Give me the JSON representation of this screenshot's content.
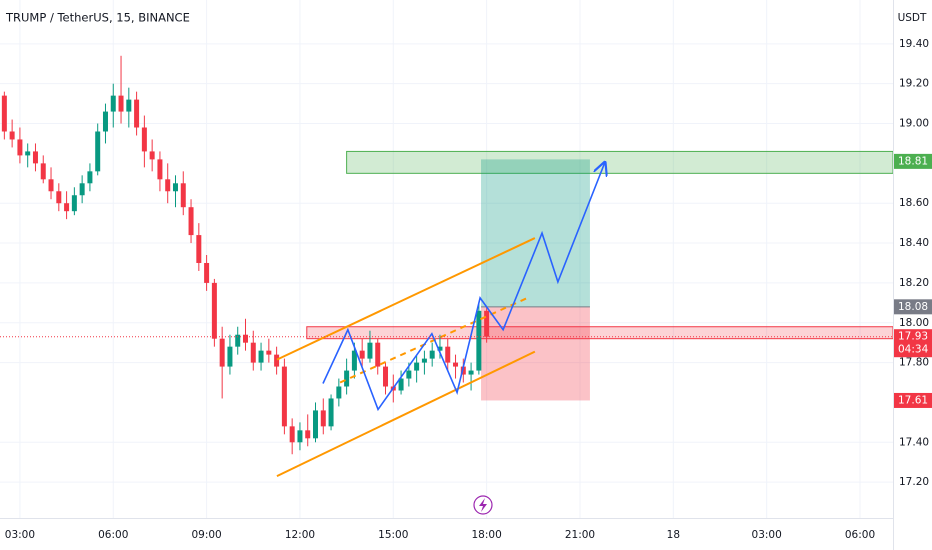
{
  "chart_data": {
    "type": "candlestick",
    "title": "TRUMP / TetherUS, 15, BINANCE",
    "unit": "USDT",
    "up_color": "#089981",
    "down_color": "#f23645",
    "grid": true,
    "xlim": [
      2.36,
      31.06
    ],
    "ylim": [
      17.02,
      19.62
    ],
    "yticks": [
      {
        "value": 17.2,
        "label": "17.20"
      },
      {
        "value": 17.4,
        "label": "17.40"
      },
      {
        "value": 17.8,
        "label": "17.80"
      },
      {
        "value": 18,
        "label": "18.00"
      },
      {
        "value": 18.2,
        "label": "18.20"
      },
      {
        "value": 18.4,
        "label": "18.40"
      },
      {
        "value": 18.6,
        "label": "18.60"
      },
      {
        "value": 19,
        "label": "19.00"
      },
      {
        "value": 19.2,
        "label": "19.20"
      },
      {
        "value": 19.4,
        "label": "19.40"
      }
    ],
    "xticks": [
      {
        "value": 3,
        "label": "03:00"
      },
      {
        "value": 6,
        "label": "06:00"
      },
      {
        "value": 9,
        "label": "09:00"
      },
      {
        "value": 12,
        "label": "12:00"
      },
      {
        "value": 15,
        "label": "15:00"
      },
      {
        "value": 18,
        "label": "18:00"
      },
      {
        "value": 21,
        "label": "21:00"
      },
      {
        "value": 24,
        "label": "18"
      },
      {
        "value": 27,
        "label": "03:00"
      },
      {
        "value": 30,
        "label": "06:00"
      }
    ],
    "candles": {
      "x": [
        2.5,
        2.75,
        3,
        3.25,
        3.5,
        3.75,
        4,
        4.25,
        4.5,
        4.75,
        5,
        5.25,
        5.5,
        5.75,
        6,
        6.25,
        6.5,
        6.75,
        7,
        7.25,
        7.5,
        7.75,
        8,
        8.25,
        8.5,
        8.75,
        9,
        9.25,
        9.5,
        9.75,
        10,
        10.25,
        10.5,
        10.75,
        11,
        11.25,
        11.5,
        11.75,
        12,
        12.25,
        12.5,
        12.75,
        13,
        13.25,
        13.5,
        13.75,
        14,
        14.25,
        14.5,
        14.75,
        15,
        15.25,
        15.5,
        15.75,
        16,
        16.25,
        16.5,
        16.75,
        17,
        17.25,
        17.5,
        17.75,
        18
      ],
      "open": [
        19.14,
        18.96,
        18.92,
        18.84,
        18.86,
        18.8,
        18.72,
        18.66,
        18.6,
        18.56,
        18.64,
        18.7,
        18.76,
        18.96,
        19.06,
        19.14,
        19.06,
        19.12,
        18.98,
        18.86,
        18.82,
        18.72,
        18.66,
        18.7,
        18.58,
        18.44,
        18.3,
        18.2,
        17.92,
        17.78,
        17.88,
        17.94,
        17.9,
        17.8,
        17.86,
        17.84,
        17.78,
        17.48,
        17.4,
        17.46,
        17.42,
        17.56,
        17.48,
        17.62,
        17.68,
        17.76,
        17.86,
        17.82,
        17.9,
        17.78,
        17.68,
        17.66,
        17.72,
        17.76,
        17.8,
        17.82,
        17.86,
        17.88,
        17.8,
        17.78,
        17.74,
        17.76,
        18.06
      ],
      "high": [
        19.16,
        19.02,
        18.98,
        18.9,
        18.9,
        18.84,
        18.78,
        18.7,
        18.66,
        18.68,
        18.74,
        18.8,
        19.0,
        19.1,
        19.2,
        19.34,
        19.18,
        19.16,
        19.04,
        18.92,
        18.86,
        18.8,
        18.74,
        18.76,
        18.62,
        18.5,
        18.34,
        18.22,
        17.98,
        17.94,
        17.98,
        18.02,
        17.96,
        17.9,
        17.92,
        17.88,
        17.82,
        17.52,
        17.5,
        17.54,
        17.6,
        17.62,
        17.64,
        17.72,
        17.82,
        17.9,
        17.92,
        17.96,
        17.92,
        17.8,
        17.74,
        17.76,
        17.8,
        17.84,
        17.86,
        17.9,
        17.94,
        17.92,
        17.84,
        17.82,
        17.8,
        18.1,
        18.08
      ],
      "low": [
        18.92,
        18.88,
        18.8,
        18.78,
        18.76,
        18.7,
        18.62,
        18.56,
        18.52,
        18.54,
        18.6,
        18.66,
        18.74,
        18.9,
        18.98,
        19.0,
        18.98,
        18.94,
        18.78,
        18.76,
        18.66,
        18.6,
        18.58,
        18.54,
        18.4,
        18.26,
        18.16,
        17.88,
        17.62,
        17.74,
        17.84,
        17.86,
        17.76,
        17.76,
        17.8,
        17.74,
        17.44,
        17.34,
        17.36,
        17.38,
        17.4,
        17.44,
        17.46,
        17.58,
        17.64,
        17.72,
        17.78,
        17.8,
        17.74,
        17.64,
        17.6,
        17.64,
        17.68,
        17.7,
        17.74,
        17.78,
        17.82,
        17.76,
        17.72,
        17.7,
        17.66,
        17.74,
        17.9
      ],
      "close": [
        18.96,
        18.92,
        18.84,
        18.86,
        18.8,
        18.72,
        18.66,
        18.6,
        18.56,
        18.64,
        18.7,
        18.76,
        18.96,
        19.06,
        19.14,
        19.06,
        19.12,
        18.98,
        18.86,
        18.82,
        18.72,
        18.66,
        18.7,
        18.58,
        18.44,
        18.3,
        18.2,
        17.92,
        17.78,
        17.88,
        17.94,
        17.9,
        17.8,
        17.86,
        17.84,
        17.78,
        17.48,
        17.4,
        17.46,
        17.42,
        17.56,
        17.48,
        17.62,
        17.68,
        17.76,
        17.86,
        17.82,
        17.9,
        17.78,
        17.68,
        17.66,
        17.72,
        17.76,
        17.8,
        17.82,
        17.86,
        17.88,
        17.8,
        17.78,
        17.74,
        17.76,
        18.06,
        17.93
      ]
    },
    "resistance_zone": {
      "x": 13.5,
      "low": 18.75,
      "high": 18.86,
      "color": "#4caf50"
    },
    "support_zone": {
      "x": 12.22,
      "low": 17.92,
      "high": 17.98,
      "color": "#f23645"
    },
    "position": {
      "x": [
        17.82,
        21.32
      ],
      "entry": 18.08,
      "target": 18.82,
      "stop": 17.61
    },
    "channel": {
      "color": "#ff9800",
      "lines": [
        {
          "x": [
            11.26,
            19.55
          ],
          "y": [
            17.23,
            17.855
          ]
        },
        {
          "x": [
            11.26,
            19.55
          ],
          "y": [
            17.815,
            18.425
          ]
        },
        {
          "x": [
            13.29,
            19.39
          ],
          "y": [
            17.7,
            18.13
          ],
          "dashed": true
        }
      ]
    },
    "projection": {
      "color": "#2962ff",
      "x": [
        12.74,
        13.54,
        14.51,
        16.24,
        17.05,
        17.79,
        18.53,
        19.78,
        20.29,
        21.8
      ],
      "y": [
        17.695,
        17.965,
        17.565,
        17.945,
        17.65,
        18.125,
        17.965,
        18.45,
        18.205,
        18.805
      ]
    },
    "price_labels": [
      {
        "value": 18.81,
        "color": "#4caf50"
      },
      {
        "value": 18.08,
        "color": "#787b86"
      },
      {
        "value": 17.93,
        "color": "#f23645",
        "countdown": "04:34"
      },
      {
        "value": 17.61,
        "color": "#f23645"
      }
    ],
    "last_price": 17.93
  }
}
